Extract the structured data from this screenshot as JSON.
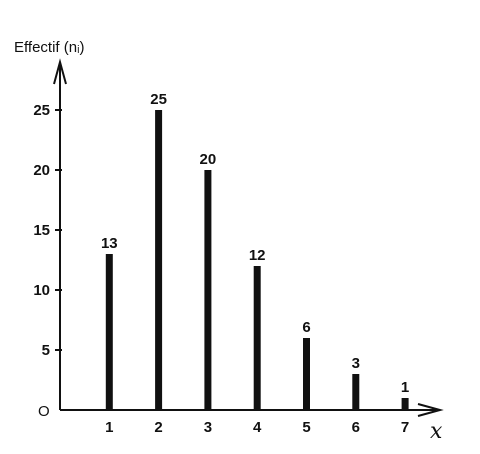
{
  "chart_data": {
    "type": "bar",
    "categories": [
      "1",
      "2",
      "3",
      "4",
      "5",
      "6",
      "7"
    ],
    "values": [
      13,
      25,
      20,
      12,
      6,
      3,
      1
    ],
    "data_labels": [
      "13",
      "25",
      "20",
      "12",
      "6",
      "3",
      "1"
    ],
    "y_ticks": [
      "5",
      "10",
      "15",
      "20",
      "25"
    ],
    "ylabel": "Effectif (nᵢ)",
    "xlabel": "x",
    "origin_label": "O",
    "ylim": [
      0,
      30
    ],
    "xlim": [
      0,
      7.5
    ],
    "grid": false,
    "legend": "none",
    "bar_color": "#111111"
  }
}
